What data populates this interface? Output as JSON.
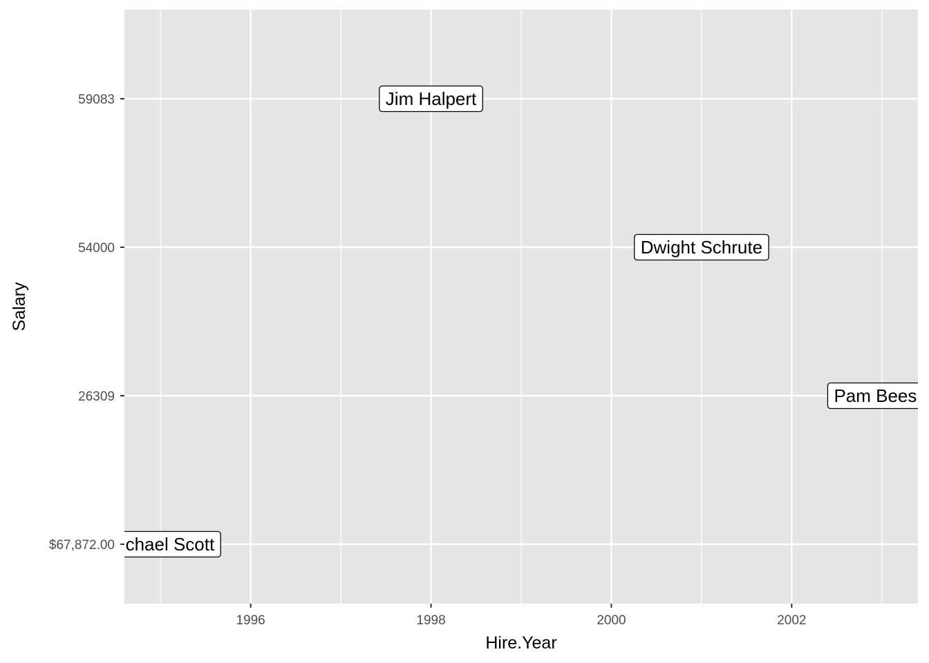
{
  "chart_data": {
    "type": "scatter",
    "xlabel": "Hire.Year",
    "ylabel": "Salary",
    "xlim": [
      1994.6,
      2003.4
    ],
    "x_major_ticks": [
      1996,
      1998,
      2000,
      2002
    ],
    "x_minor_ticks": [
      1995,
      1997,
      1999,
      2001,
      2003
    ],
    "y_categories": [
      "$67,872.00",
      "26309",
      "54000",
      "59083"
    ],
    "y_tick_labels": [
      "59083",
      "54000",
      "26309",
      "$67,872.00"
    ],
    "grid": true,
    "legend": "none",
    "points": [
      {
        "label": "Michael Scott",
        "x": 1995.0,
        "y": "$67,872.00"
      },
      {
        "label": "Jim Halpert",
        "x": 1998.0,
        "y": "59083"
      },
      {
        "label": "Dwight Schrute",
        "x": 2001.0,
        "y": "54000"
      },
      {
        "label": "Pam Beesly",
        "x": 2003.0,
        "y": "26309"
      }
    ],
    "colors": {
      "panel_background": "#e5e5e5",
      "gridline": "#ffffff",
      "label_fill": "#ffffff",
      "label_border": "#000000",
      "tick_text": "#4d4d4d"
    }
  }
}
